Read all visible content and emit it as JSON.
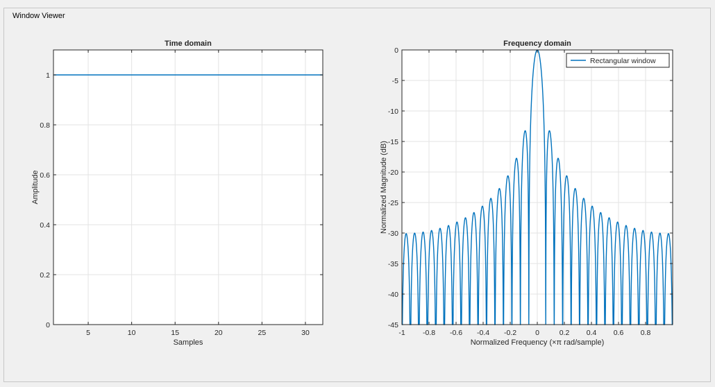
{
  "panel": {
    "title": "Window Viewer"
  },
  "colors": {
    "line": "#0072bd",
    "grid": "#e3e3e3",
    "axis": "#262626",
    "background": "#f0f0f0",
    "plot_bg": "#ffffff"
  },
  "chart_data": [
    {
      "type": "line",
      "title": "Time domain",
      "xlabel": "Samples",
      "ylabel": "Amplitude",
      "xlim": [
        1,
        32
      ],
      "ylim": [
        0,
        1.1
      ],
      "xticks": [
        5,
        10,
        15,
        20,
        25,
        30
      ],
      "yticks": [
        0,
        0.2,
        0.4,
        0.6,
        0.8,
        1
      ],
      "xtick_labels": [
        "5",
        "10",
        "15",
        "20",
        "25",
        "30"
      ],
      "ytick_labels": [
        "0",
        "0.2",
        "0.4",
        "0.6",
        "0.8",
        "1"
      ],
      "grid": true,
      "series": [
        {
          "window_length": 32,
          "x": [
            1,
            32
          ],
          "y": [
            1,
            1
          ]
        }
      ]
    },
    {
      "type": "line",
      "title": "Frequency domain",
      "xlabel": "Normalized Frequency  (×π rad/sample)",
      "ylabel": "Normalized Magnitude (dB)",
      "xlim": [
        -1,
        1
      ],
      "ylim": [
        -45,
        0
      ],
      "xticks": [
        -1,
        -0.8,
        -0.6,
        -0.4,
        -0.2,
        0,
        0.2,
        0.4,
        0.6,
        0.8
      ],
      "yticks": [
        0,
        -5,
        -10,
        -15,
        -20,
        -25,
        -30,
        -35,
        -40,
        -45
      ],
      "xtick_labels": [
        "-1",
        "-0.8",
        "-0.6",
        "-0.4",
        "-0.2",
        "0",
        "0.2",
        "0.4",
        "0.6",
        "0.8"
      ],
      "ytick_labels": [
        "0",
        "-5",
        "-10",
        "-15",
        "-20",
        "-25",
        "-30",
        "-35",
        "-40",
        "-45"
      ],
      "grid": true,
      "legend_position": "top-right",
      "series": [
        {
          "name": "Rectangular window",
          "window": "rectangular",
          "length": 32,
          "clip_db": -45
        }
      ]
    }
  ]
}
